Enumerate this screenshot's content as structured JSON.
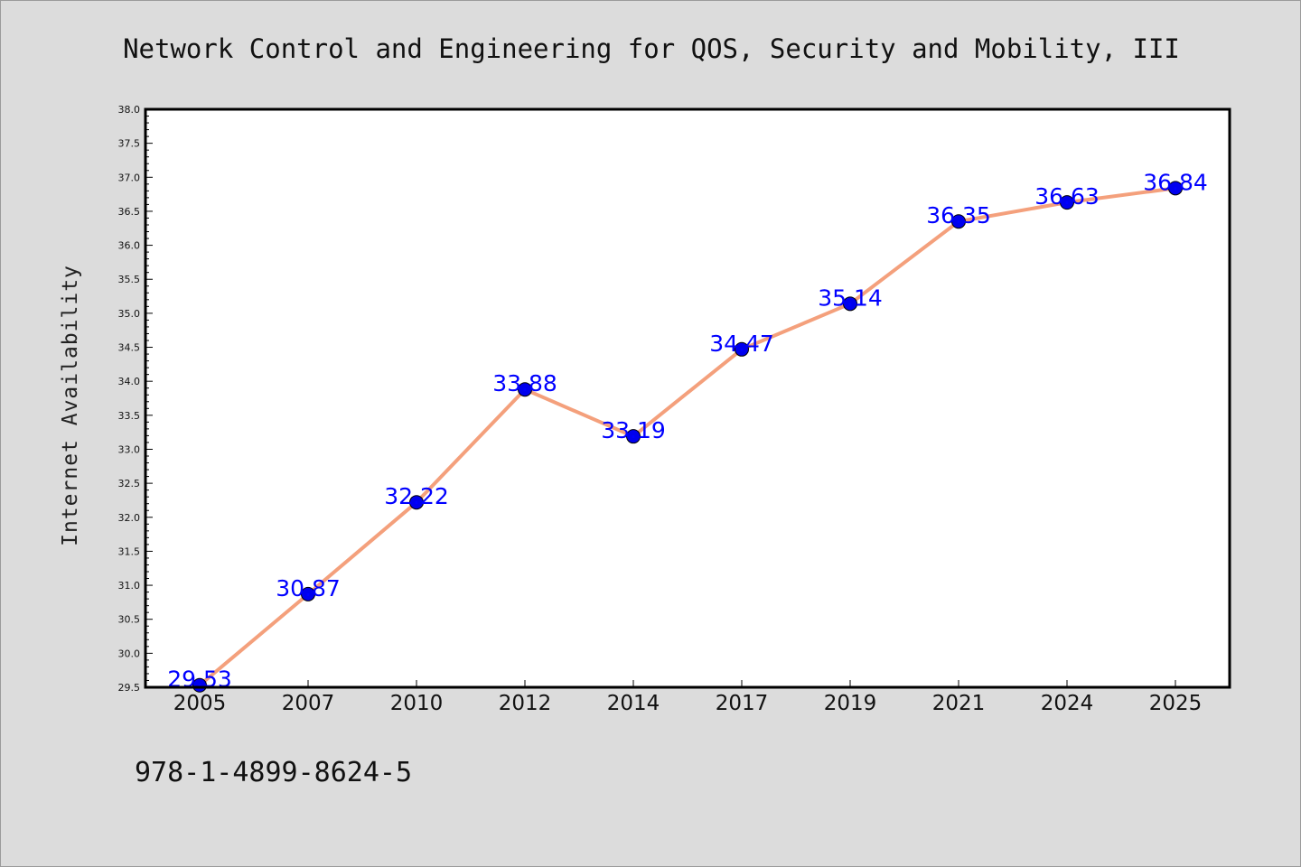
{
  "chart_data": {
    "type": "line",
    "title": "Network Control and Engineering for QOS, Security and Mobility, III",
    "xlabel": "",
    "ylabel": "Internet Availability",
    "categories": [
      "2005",
      "2007",
      "2010",
      "2012",
      "2014",
      "2017",
      "2019",
      "2021",
      "2024",
      "2025"
    ],
    "series": [
      {
        "values": [
          29.53,
          30.87,
          32.22,
          33.88,
          33.19,
          34.47,
          35.14,
          36.35,
          36.63,
          36.84
        ]
      }
    ],
    "data_labels": [
      "29.53",
      "30.87",
      "32.22",
      "33.88",
      "33.19",
      "34.47",
      "35.14",
      "36.35",
      "36.63",
      "36.84"
    ],
    "ylim": [
      29.5,
      38.0
    ],
    "yticks": [
      "29.5",
      "30.0",
      "30.5",
      "31.0",
      "31.5",
      "32.0",
      "32.5",
      "33.0",
      "33.5",
      "34.0",
      "34.5",
      "35.0",
      "35.5",
      "36.0",
      "36.5",
      "37.0",
      "37.5",
      "38.0"
    ],
    "grid": false,
    "colors": {
      "line": "#f4a07c",
      "marker": "#0000ee",
      "marker_edge": "#000000",
      "data_label": "#0000ff",
      "background": "#dcdcdc",
      "plot_background": "#ffffff"
    }
  },
  "footer": {
    "isbn": "978-1-4899-8624-5"
  }
}
